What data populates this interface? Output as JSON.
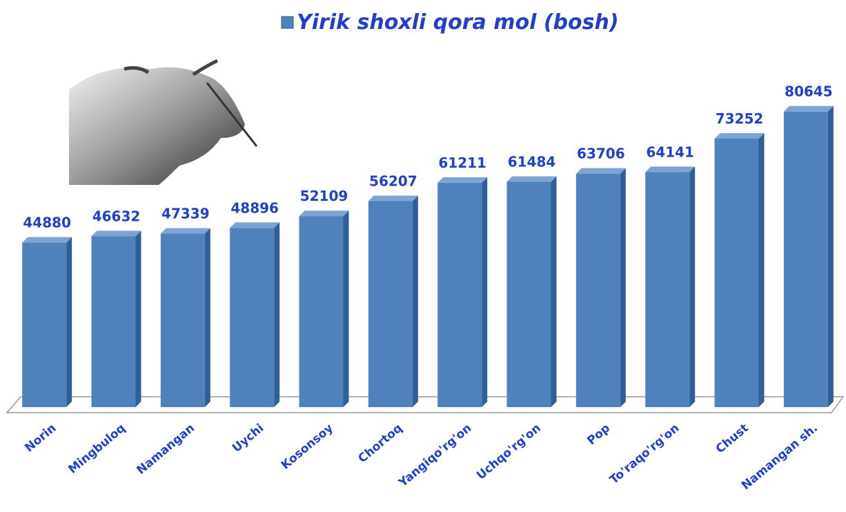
{
  "chart_data": {
    "type": "bar",
    "categories": [
      "Norin",
      "Mingbuloq",
      "Namangan",
      "Uychi",
      "Kosonsoy",
      "Chortoq",
      "Yangiqo'rg'on",
      "Uchqo'rg'on",
      "Pop",
      "To'raqo'rg'on",
      "Chust",
      "Namangan sh."
    ],
    "series": [
      {
        "name": "Yirik shoxli qora mol (bosh)",
        "color": "#4f81bd",
        "values": [
          44880,
          46632,
          47339,
          48896,
          52109,
          56207,
          61211,
          61484,
          63706,
          64141,
          73252,
          80645
        ]
      }
    ],
    "ylim": [
      0,
      90000
    ]
  }
}
